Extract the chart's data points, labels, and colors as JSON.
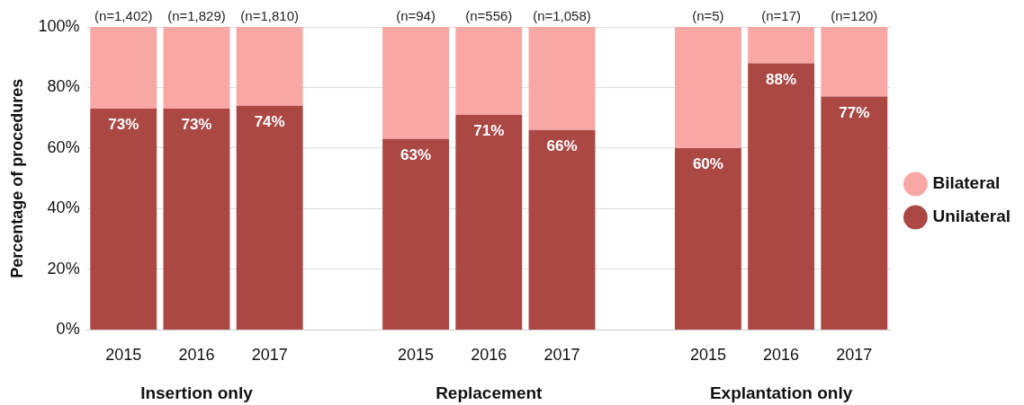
{
  "chart_data": {
    "type": "bar",
    "stacked": true,
    "ylabel": "Percentage of procedures",
    "categories": [
      "2015",
      "2016",
      "2017",
      null,
      "2015",
      "2016",
      "2017",
      null,
      "2015",
      "2016",
      "2017"
    ],
    "series": [
      {
        "name": "Unilateral",
        "color": "#ab4844",
        "values": [
          73,
          73,
          74,
          null,
          63,
          71,
          66,
          null,
          60,
          88,
          77
        ],
        "value_labels": [
          "73%",
          "73%",
          "74%",
          null,
          "63%",
          "71%",
          "66%",
          null,
          "60%",
          "88%",
          "77%"
        ]
      },
      {
        "name": "Bilateral",
        "color": "#f9a7a5",
        "values": [
          27,
          27,
          26,
          null,
          37,
          29,
          34,
          null,
          40,
          12,
          23
        ]
      }
    ],
    "annotations": [
      "(n=1,402)",
      "(n=1,829)",
      "(n=1,810)",
      "(n=94)",
      "(n=556)",
      "(n=1,058)",
      "(n=5)",
      "(n=17)",
      "(n=120)",
      "Insertion only",
      "Replacement",
      "Explantation only"
    ],
    "ylim": [
      0,
      100
    ],
    "yticks": [
      {
        "value": 0,
        "label": "0%"
      },
      {
        "value": 20,
        "label": "20%"
      },
      {
        "value": 40,
        "label": "40%"
      },
      {
        "value": 60,
        "label": "60%"
      },
      {
        "value": 80,
        "label": "80%"
      },
      {
        "value": 100,
        "label": "100%"
      }
    ],
    "grid": "y",
    "legend": "right",
    "marker": "circle"
  }
}
